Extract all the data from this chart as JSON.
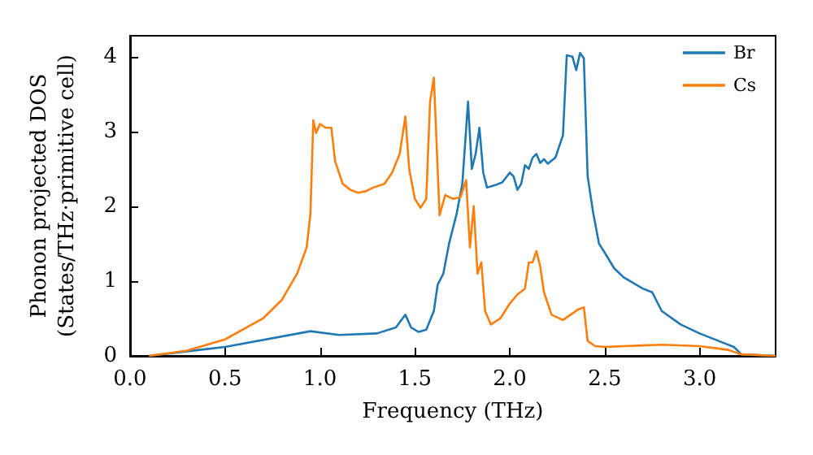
{
  "chart_data": {
    "type": "line",
    "xlabel": "Frequency (THz)",
    "ylabel": "Phonon projected DOS\n(States/THz·primitive cell)",
    "xlim": [
      0,
      3.4
    ],
    "ylim": [
      0,
      4.28
    ],
    "xticks": [
      {
        "value": 0,
        "label": "0.0"
      },
      0.5,
      {
        "value": 1,
        "label": "1.0"
      },
      1.5,
      {
        "value": 2,
        "label": "2.0"
      },
      2.5,
      {
        "value": 3,
        "label": "3.0"
      }
    ],
    "yticks": [
      0,
      1,
      2,
      3,
      4
    ],
    "grid": false,
    "legend": "top right",
    "marker": "none",
    "line_style": "solid",
    "series": [
      {
        "name": "Br",
        "color": "#1f77b4",
        "x": [
          0.1,
          0.5,
          0.95,
          1.1,
          1.3,
          1.4,
          1.45,
          1.48,
          1.52,
          1.56,
          1.6,
          1.62,
          1.65,
          1.68,
          1.72,
          1.75,
          1.78,
          1.8,
          1.82,
          1.84,
          1.86,
          1.88,
          1.92,
          1.96,
          2,
          2.02,
          2.04,
          2.06,
          2.08,
          2.1,
          2.12,
          2.14,
          2.16,
          2.18,
          2.2,
          2.24,
          2.28,
          2.3,
          2.33,
          2.35,
          2.37,
          2.39,
          2.41,
          2.44,
          2.47,
          2.5,
          2.55,
          2.6,
          2.7,
          2.75,
          2.8,
          2.9,
          3,
          3.1,
          3.18,
          3.22,
          3.4
        ],
        "values": [
          0,
          0.12,
          0.33,
          0.28,
          0.3,
          0.38,
          0.55,
          0.38,
          0.32,
          0.35,
          0.6,
          0.95,
          1.1,
          1.5,
          1.9,
          2.3,
          3.4,
          2.5,
          2.7,
          3.05,
          2.45,
          2.25,
          2.28,
          2.32,
          2.45,
          2.4,
          2.22,
          2.3,
          2.55,
          2.5,
          2.65,
          2.7,
          2.58,
          2.63,
          2.57,
          2.65,
          2.95,
          4.02,
          4,
          3.82,
          4.05,
          3.98,
          2.4,
          1.9,
          1.5,
          1.38,
          1.17,
          1.05,
          0.9,
          0.85,
          0.6,
          0.42,
          0.3,
          0.2,
          0.12,
          0.02,
          0
        ]
      },
      {
        "name": "Cs",
        "color": "#ff7f0e",
        "x": [
          0.1,
          0.3,
          0.5,
          0.7,
          0.8,
          0.88,
          0.93,
          0.95,
          0.965,
          0.98,
          1,
          1.03,
          1.06,
          1.08,
          1.12,
          1.16,
          1.2,
          1.24,
          1.28,
          1.34,
          1.38,
          1.42,
          1.45,
          1.47,
          1.5,
          1.53,
          1.56,
          1.58,
          1.6,
          1.63,
          1.66,
          1.7,
          1.74,
          1.77,
          1.79,
          1.81,
          1.83,
          1.85,
          1.87,
          1.9,
          1.95,
          2,
          2.04,
          2.08,
          2.1,
          2.12,
          2.14,
          2.16,
          2.18,
          2.22,
          2.28,
          2.32,
          2.36,
          2.39,
          2.41,
          2.45,
          2.5,
          2.7,
          2.8,
          3,
          3.15,
          3.22,
          3.4
        ],
        "values": [
          0,
          0.07,
          0.22,
          0.5,
          0.75,
          1.1,
          1.45,
          1.9,
          3.15,
          2.98,
          3.1,
          3.05,
          3.05,
          2.6,
          2.3,
          2.22,
          2.18,
          2.2,
          2.25,
          2.3,
          2.45,
          2.7,
          3.2,
          2.5,
          2.1,
          1.98,
          2.1,
          3.4,
          3.72,
          1.88,
          2.15,
          2.1,
          2.12,
          2.35,
          1.45,
          2,
          1.1,
          1.25,
          0.6,
          0.42,
          0.5,
          0.7,
          0.82,
          0.9,
          1.25,
          1.25,
          1.4,
          1.2,
          0.85,
          0.55,
          0.48,
          0.55,
          0.62,
          0.65,
          0.2,
          0.13,
          0.12,
          0.14,
          0.15,
          0.13,
          0.08,
          0.02,
          0
        ]
      }
    ]
  }
}
